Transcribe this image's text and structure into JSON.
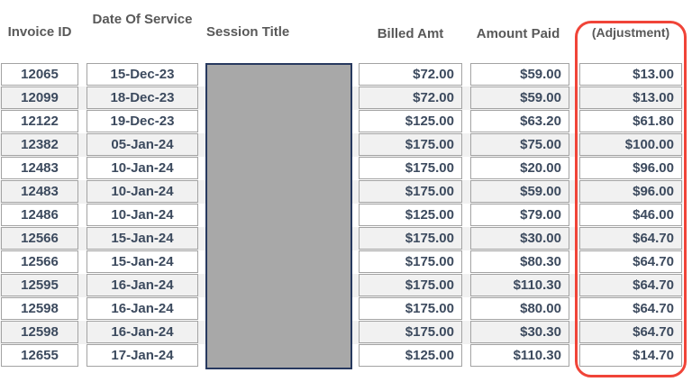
{
  "table": {
    "headers": {
      "invoice_id": "Invoice ID",
      "date_of_service": "Date Of Service",
      "session_title": "Session Title",
      "billed_amt": "Billed Amt",
      "amount_paid": "Amount Paid",
      "adjustment": "(Adjustment)"
    },
    "session_title_redacted": true,
    "rows": [
      {
        "invoice_id": "12065",
        "date_of_service": "15-Dec-23",
        "billed_amt": "$72.00",
        "amount_paid": "$59.00",
        "adjustment": "$13.00"
      },
      {
        "invoice_id": "12099",
        "date_of_service": "18-Dec-23",
        "billed_amt": "$72.00",
        "amount_paid": "$59.00",
        "adjustment": "$13.00"
      },
      {
        "invoice_id": "12122",
        "date_of_service": "19-Dec-23",
        "billed_amt": "$125.00",
        "amount_paid": "$63.20",
        "adjustment": "$61.80"
      },
      {
        "invoice_id": "12382",
        "date_of_service": "05-Jan-24",
        "billed_amt": "$175.00",
        "amount_paid": "$75.00",
        "adjustment": "$100.00"
      },
      {
        "invoice_id": "12483",
        "date_of_service": "10-Jan-24",
        "billed_amt": "$175.00",
        "amount_paid": "$20.00",
        "adjustment": "$96.00"
      },
      {
        "invoice_id": "12483",
        "date_of_service": "10-Jan-24",
        "billed_amt": "$175.00",
        "amount_paid": "$59.00",
        "adjustment": "$96.00"
      },
      {
        "invoice_id": "12486",
        "date_of_service": "10-Jan-24",
        "billed_amt": "$125.00",
        "amount_paid": "$79.00",
        "adjustment": "$46.00"
      },
      {
        "invoice_id": "12566",
        "date_of_service": "15-Jan-24",
        "billed_amt": "$175.00",
        "amount_paid": "$30.00",
        "adjustment": "$64.70"
      },
      {
        "invoice_id": "12566",
        "date_of_service": "15-Jan-24",
        "billed_amt": "$175.00",
        "amount_paid": "$80.30",
        "adjustment": "$64.70"
      },
      {
        "invoice_id": "12595",
        "date_of_service": "16-Jan-24",
        "billed_amt": "$175.00",
        "amount_paid": "$110.30",
        "adjustment": "$64.70"
      },
      {
        "invoice_id": "12598",
        "date_of_service": "16-Jan-24",
        "billed_amt": "$175.00",
        "amount_paid": "$80.00",
        "adjustment": "$64.70"
      },
      {
        "invoice_id": "12598",
        "date_of_service": "16-Jan-24",
        "billed_amt": "$175.00",
        "amount_paid": "$30.30",
        "adjustment": "$64.70"
      },
      {
        "invoice_id": "12655",
        "date_of_service": "17-Jan-24",
        "billed_amt": "$125.00",
        "amount_paid": "$110.30",
        "adjustment": "$14.70"
      }
    ]
  },
  "colors": {
    "highlight_red": "#f04438",
    "redaction_fill": "#a8a8a8",
    "redaction_border": "#27395f",
    "row_stripe": "#f1f1f1",
    "cell_border": "#a3a3a3",
    "cell_text": "#3c4a5e",
    "header_text": "#595959"
  }
}
